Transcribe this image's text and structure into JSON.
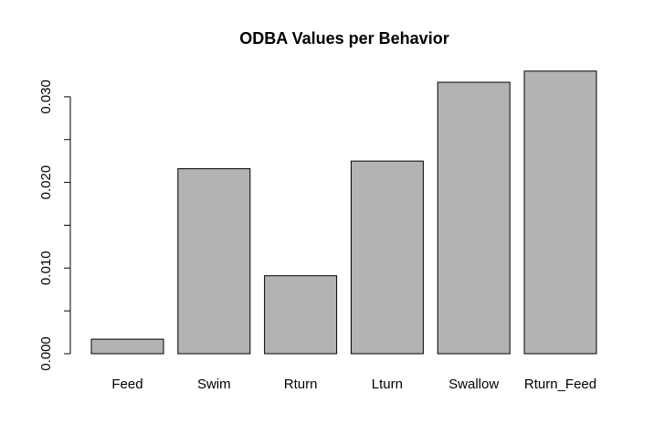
{
  "chart_data": {
    "type": "bar",
    "title": "ODBA Values per Behavior",
    "xlabel": "",
    "ylabel": "",
    "categories": [
      "Feed",
      "Swim",
      "Rturn",
      "Lturn",
      "Swallow",
      "Rturn_Feed"
    ],
    "values": [
      0.0017,
      0.0216,
      0.0091,
      0.0225,
      0.0317,
      0.033
    ],
    "ylim": [
      0,
      0.033
    ],
    "y_ticks": [
      0,
      0.005,
      0.01,
      0.015,
      0.02,
      0.025,
      0.03
    ],
    "y_tick_labels": [
      "0.000",
      "",
      "0.010",
      "",
      "0.020",
      "",
      "0.030"
    ],
    "grid": false,
    "bar_fill": "#b3b3b3",
    "bar_stroke": "#000000"
  }
}
